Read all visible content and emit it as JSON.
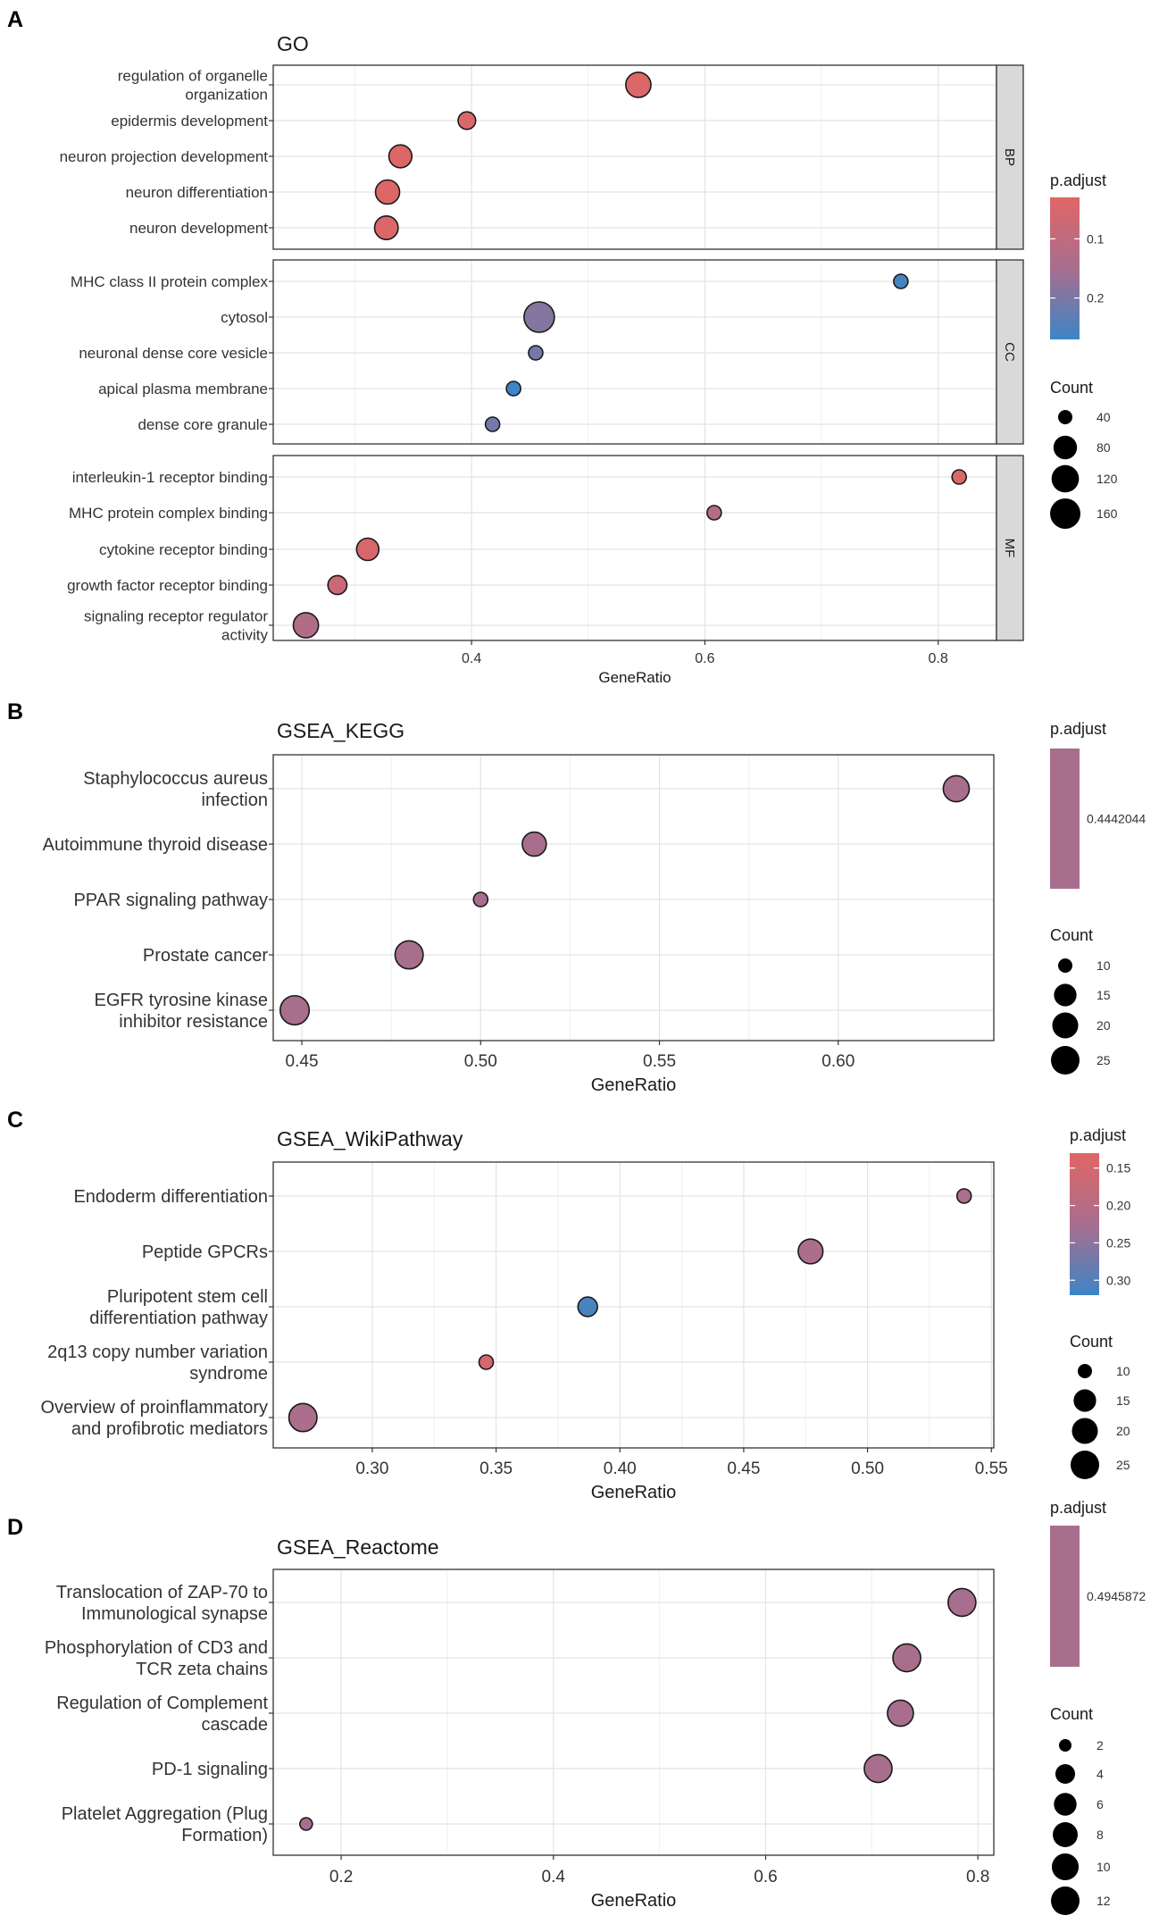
{
  "chart_data": [
    {
      "panel": "A",
      "type": "scatter",
      "title": "GO",
      "xlabel": "GeneRatio",
      "xlim": [
        0.23,
        0.85
      ],
      "xticks": [
        0.4,
        0.6,
        0.8
      ],
      "xtick_labels": [
        "0.4",
        "0.6",
        "0.8"
      ],
      "facets": [
        {
          "label": "BP",
          "terms": [
            {
              "label": "regulation of organelle organization",
              "lines": [
                "regulation of organelle",
                "organization"
              ],
              "x": 0.543,
              "count": 95,
              "p_adjust": 0.04
            },
            {
              "label": "epidermis development",
              "lines": [
                "epidermis development"
              ],
              "x": 0.396,
              "count": 45,
              "p_adjust": 0.04
            },
            {
              "label": "neuron projection development",
              "lines": [
                "neuron projection development"
              ],
              "x": 0.339,
              "count": 75,
              "p_adjust": 0.04
            },
            {
              "label": "neuron differentiation",
              "lines": [
                "neuron differentiation"
              ],
              "x": 0.328,
              "count": 85,
              "p_adjust": 0.04
            },
            {
              "label": "neuron development",
              "lines": [
                "neuron development"
              ],
              "x": 0.327,
              "count": 80,
              "p_adjust": 0.04
            }
          ]
        },
        {
          "label": "CC",
          "terms": [
            {
              "label": "MHC class II protein complex",
              "lines": [
                "MHC class II protein complex"
              ],
              "x": 0.768,
              "count": 30,
              "p_adjust": 0.26
            },
            {
              "label": "cytosol",
              "lines": [
                "cytosol"
              ],
              "x": 0.458,
              "count": 160,
              "p_adjust": 0.19
            },
            {
              "label": "neuronal dense core vesicle",
              "lines": [
                "neuronal dense core vesicle"
              ],
              "x": 0.455,
              "count": 20,
              "p_adjust": 0.21
            },
            {
              "label": "apical plasma membrane",
              "lines": [
                "apical plasma membrane"
              ],
              "x": 0.436,
              "count": 35,
              "p_adjust": 0.27
            },
            {
              "label": "dense core granule",
              "lines": [
                "dense core granule"
              ],
              "x": 0.418,
              "count": 20,
              "p_adjust": 0.21
            }
          ]
        },
        {
          "label": "MF",
          "terms": [
            {
              "label": "interleukin-1 receptor binding",
              "lines": [
                "interleukin-1 receptor binding"
              ],
              "x": 0.818,
              "count": 30,
              "p_adjust": 0.04
            },
            {
              "label": "MHC protein complex binding",
              "lines": [
                "MHC protein complex binding"
              ],
              "x": 0.608,
              "count": 35,
              "p_adjust": 0.12
            },
            {
              "label": "cytokine receptor binding",
              "lines": [
                "cytokine receptor binding"
              ],
              "x": 0.311,
              "count": 70,
              "p_adjust": 0.05
            },
            {
              "label": "growth factor receptor binding",
              "lines": [
                "growth factor receptor binding"
              ],
              "x": 0.285,
              "count": 50,
              "p_adjust": 0.08
            },
            {
              "label": "signaling receptor regulator activity",
              "lines": [
                "signaling receptor regulator",
                "activity"
              ],
              "x": 0.258,
              "count": 95,
              "p_adjust": 0.13
            }
          ]
        }
      ],
      "legend": {
        "color_title": "p.adjust",
        "color_ticks": [
          {
            "label": "0.1",
            "value": 0.1
          },
          {
            "label": "0.2",
            "value": 0.2
          }
        ],
        "color_range": [
          0.03,
          0.27
        ],
        "color_low": "#e06666",
        "color_high": "#3d85c6",
        "size_title": "Count",
        "size_entries": [
          {
            "label": "40",
            "value": 40
          },
          {
            "label": "80",
            "value": 80
          },
          {
            "label": "120",
            "value": 120
          },
          {
            "label": "160",
            "value": 160
          }
        ]
      }
    },
    {
      "panel": "B",
      "type": "scatter",
      "title": "GSEA_KEGG",
      "xlabel": "GeneRatio",
      "xlim": [
        0.442,
        0.6435
      ],
      "xticks": [
        0.45,
        0.5,
        0.55,
        0.6
      ],
      "xtick_labels": [
        "0.45",
        "0.50",
        "0.55",
        "0.60"
      ],
      "terms": [
        {
          "label": "Staphylococcus aureus infection",
          "lines": [
            "Staphylococcus aureus",
            "infection"
          ],
          "x": 0.633,
          "count": 20,
          "p_adjust": 0.4442044
        },
        {
          "label": "Autoimmune thyroid disease",
          "lines": [
            "Autoimmune thyroid disease"
          ],
          "x": 0.515,
          "count": 17,
          "p_adjust": 0.4442044
        },
        {
          "label": "PPAR signaling pathway",
          "lines": [
            "PPAR signaling pathway"
          ],
          "x": 0.5,
          "count": 8,
          "p_adjust": 0.4442044
        },
        {
          "label": "Prostate cancer",
          "lines": [
            "Prostate cancer"
          ],
          "x": 0.48,
          "count": 24,
          "p_adjust": 0.4442044
        },
        {
          "label": "EGFR tyrosine kinase inhibitor resistance",
          "lines": [
            "EGFR tyrosine kinase",
            "inhibitor resistance"
          ],
          "x": 0.448,
          "count": 26,
          "p_adjust": 0.4442044
        }
      ],
      "legend": {
        "color_title": "p.adjust",
        "color_ticks": [
          {
            "label": "0.4442044",
            "value": 0.4442044
          }
        ],
        "color_single": "#a86e8e",
        "size_title": "Count",
        "size_entries": [
          {
            "label": "10",
            "value": 10
          },
          {
            "label": "15",
            "value": 15
          },
          {
            "label": "20",
            "value": 20
          },
          {
            "label": "25",
            "value": 25
          }
        ]
      }
    },
    {
      "panel": "C",
      "type": "scatter",
      "title": "GSEA_WikiPathway",
      "xlabel": "GeneRatio",
      "xlim": [
        0.26,
        0.551
      ],
      "xticks": [
        0.3,
        0.35,
        0.4,
        0.45,
        0.5,
        0.55
      ],
      "xtick_labels": [
        "0.30",
        "0.35",
        "0.40",
        "0.45",
        "0.50",
        "0.55"
      ],
      "terms": [
        {
          "label": "Endoderm differentiation",
          "lines": [
            "Endoderm differentiation"
          ],
          "x": 0.539,
          "count": 8,
          "p_adjust": 0.22
        },
        {
          "label": "Peptide GPCRs",
          "lines": [
            "Peptide GPCRs"
          ],
          "x": 0.477,
          "count": 18,
          "p_adjust": 0.22
        },
        {
          "label": "Pluripotent stem cell differentiation pathway",
          "lines": [
            "Pluripotent stem cell",
            "differentiation pathway"
          ],
          "x": 0.387,
          "count": 12,
          "p_adjust": 0.31
        },
        {
          "label": "2q13 copy number variation syndrome",
          "lines": [
            "2q13 copy number variation",
            "syndrome"
          ],
          "x": 0.346,
          "count": 9,
          "p_adjust": 0.15
        },
        {
          "label": "Overview of proinflammatory and profibrotic mediators",
          "lines": [
            "Overview of proinflammatory",
            "and profibrotic mediators"
          ],
          "x": 0.272,
          "count": 24,
          "p_adjust": 0.22
        }
      ],
      "legend": {
        "color_title": "p.adjust",
        "color_ticks": [
          {
            "label": "0.15",
            "value": 0.15
          },
          {
            "label": "0.20",
            "value": 0.2
          },
          {
            "label": "0.25",
            "value": 0.25
          },
          {
            "label": "0.30",
            "value": 0.3
          }
        ],
        "color_range": [
          0.13,
          0.32
        ],
        "color_low": "#e06666",
        "color_high": "#3d85c6",
        "size_title": "Count",
        "size_entries": [
          {
            "label": "10",
            "value": 10
          },
          {
            "label": "15",
            "value": 15
          },
          {
            "label": "20",
            "value": 20
          },
          {
            "label": "25",
            "value": 25
          }
        ]
      }
    },
    {
      "panel": "D",
      "type": "scatter",
      "title": "GSEA_Reactome",
      "xlabel": "GeneRatio",
      "xlim": [
        0.136,
        0.815
      ],
      "xticks": [
        0.2,
        0.4,
        0.6,
        0.8
      ],
      "xtick_labels": [
        "0.2",
        "0.4",
        "0.6",
        "0.8"
      ],
      "terms": [
        {
          "label": "Translocation of ZAP-70 to Immunological synapse",
          "lines": [
            "Translocation of ZAP-70 to",
            "Immunological synapse"
          ],
          "x": 0.785,
          "count": 11,
          "p_adjust": 0.4945872
        },
        {
          "label": "Phosphorylation of CD3 and TCR zeta chains",
          "lines": [
            "Phosphorylation of CD3 and",
            "TCR zeta chains"
          ],
          "x": 0.733,
          "count": 11,
          "p_adjust": 0.4945872
        },
        {
          "label": "Regulation of Complement cascade",
          "lines": [
            "Regulation of Complement",
            "cascade"
          ],
          "x": 0.727,
          "count": 9,
          "p_adjust": 0.4945872
        },
        {
          "label": "PD-1 signaling",
          "lines": [
            "PD-1 signaling"
          ],
          "x": 0.706,
          "count": 11,
          "p_adjust": 0.4945872
        },
        {
          "label": "Platelet Aggregation (Plug Formation)",
          "lines": [
            "Platelet Aggregation (Plug",
            "Formation)"
          ],
          "x": 0.167,
          "count": 2,
          "p_adjust": 0.4945872
        }
      ],
      "legend": {
        "color_title": "p.adjust",
        "color_ticks": [
          {
            "label": "0.4945872",
            "value": 0.4945872
          }
        ],
        "color_single": "#a86e8e",
        "size_title": "Count",
        "size_entries": [
          {
            "label": "2",
            "value": 2
          },
          {
            "label": "4",
            "value": 4
          },
          {
            "label": "6",
            "value": 6
          },
          {
            "label": "8",
            "value": 8
          },
          {
            "label": "10",
            "value": 10
          },
          {
            "label": "12",
            "value": 12
          }
        ]
      }
    }
  ]
}
